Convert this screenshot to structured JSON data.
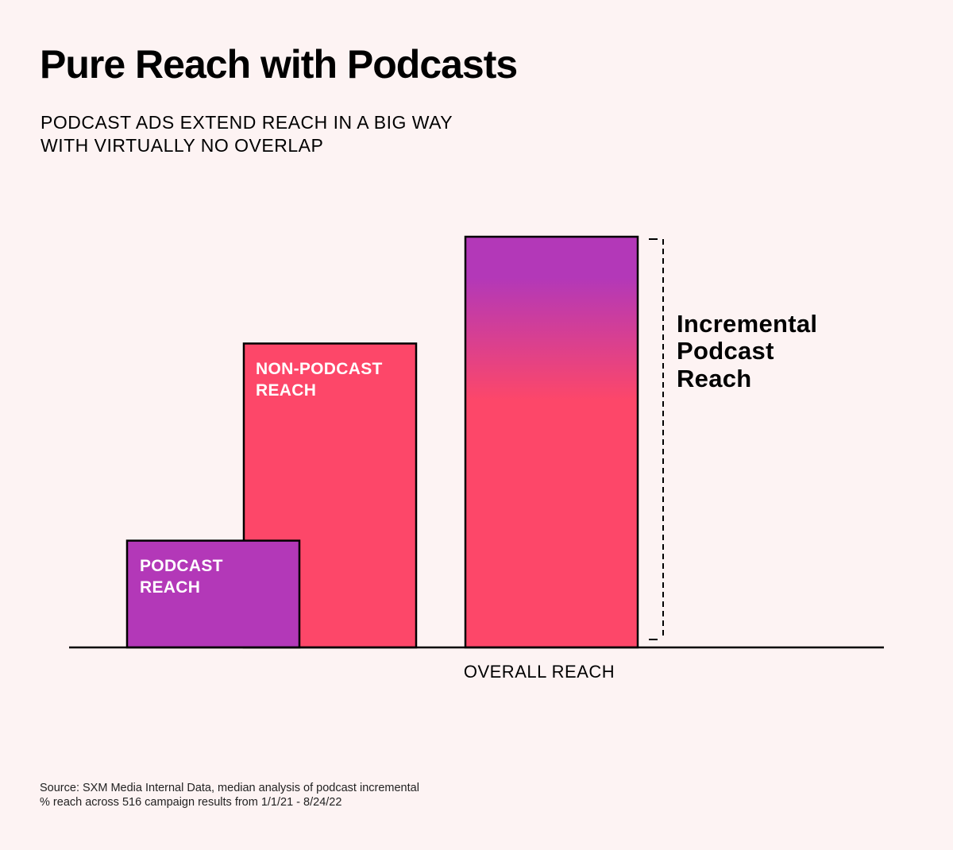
{
  "title": "Pure Reach with Podcasts",
  "subtitle_lines": [
    "PODCAST ADS EXTEND REACH IN A BIG WAY",
    "WITH VIRTUALLY NO OVERLAP"
  ],
  "source_lines": [
    "Source: SXM Media Internal Data, median analysis of podcast incremental",
    "% reach across 516 campaign results from 1/1/21 - 8/24/22"
  ],
  "colors": {
    "background": "#fdf3f3",
    "podcast": "#b338b8",
    "non_podcast": "#fd4769",
    "outline": "#000000"
  },
  "chart_data": {
    "type": "bar",
    "title": "Pure Reach with Podcasts",
    "ylim": [
      0,
      100
    ],
    "categories": [
      "PODCAST REACH",
      "NON-PODCAST REACH",
      "OVERALL REACH"
    ],
    "series": [
      {
        "values": [
          26,
          74,
          100
        ]
      }
    ],
    "bar_labels": [
      [
        "PODCAST",
        "REACH"
      ],
      [
        "NON-PODCAST",
        "REACH"
      ],
      []
    ],
    "axis_category_labels": [
      "",
      "",
      "OVERALL REACH"
    ],
    "overall_gradient": "purple at top fading to pink",
    "annotation": {
      "lines": [
        "Incremental",
        "Podcast",
        "Reach"
      ],
      "span_from": 0,
      "span_to": 100
    },
    "grid": false,
    "legend": "none"
  }
}
